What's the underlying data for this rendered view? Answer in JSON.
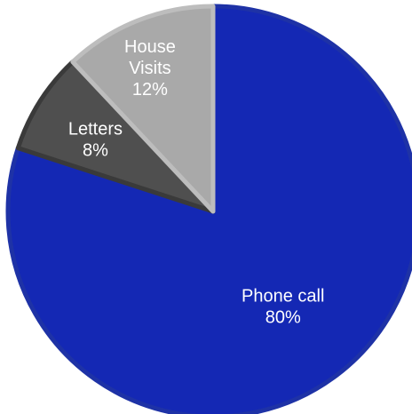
{
  "chart_data": {
    "type": "pie",
    "title": "",
    "start_angle_deg": 0,
    "direction": "clockwise",
    "legend": "none",
    "slices": [
      {
        "label": "Phone call",
        "value": 80,
        "value_label": "80%",
        "color": "#1428B4",
        "edge_color": "#1E32A6"
      },
      {
        "label": "Letters",
        "value": 8,
        "value_label": "8%",
        "color": "#4F4F4F",
        "edge_color": "#3A3A3A"
      },
      {
        "label": "House Visits",
        "value": 12,
        "value_label": "12%",
        "color": "#A9A9A9",
        "edge_color": "#BDBDBD"
      }
    ]
  }
}
